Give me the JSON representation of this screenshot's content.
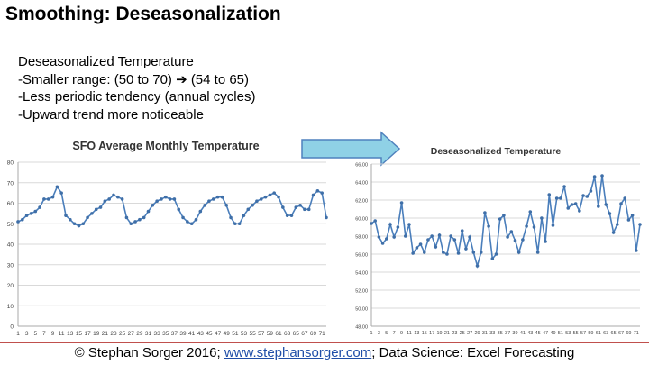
{
  "slide": {
    "title": "Smoothing: Deseasonalization",
    "notes": [
      "Deseasonalized Temperature",
      "-Smaller range: (50 to 70) ➔ (54 to 65)",
      "-Less periodic tendency (annual cycles)",
      "-Upward trend more noticeable"
    ],
    "footer_prefix": "© Stephan Sorger 2016; ",
    "footer_link": "www.stephansorger.com",
    "footer_suffix": "; Data Science: Excel Forecasting"
  },
  "colors": {
    "line": "#4a7ebb",
    "marker": "#3f6fa8",
    "grid": "#d9d9d9",
    "arrow_fill": "#8fd1e6",
    "arrow_stroke": "#4f81bd",
    "footer_rule": "#c0504d",
    "link": "#1f4ea8"
  },
  "icons": [
    "right-arrow-icon"
  ],
  "chart_data": [
    {
      "type": "line",
      "title": "SFO Average Monthly Temperature",
      "xlabel": "",
      "ylabel": "",
      "ylim": [
        0,
        80
      ],
      "yticks": [
        0,
        10,
        20,
        30,
        40,
        50,
        60,
        70,
        80
      ],
      "ytick_labels": [
        "0",
        "10",
        "20",
        "30",
        "40",
        "50",
        "60",
        "70",
        "80"
      ],
      "xticks": [
        1,
        3,
        5,
        7,
        9,
        11,
        13,
        15,
        17,
        19,
        21,
        23,
        25,
        27,
        29,
        31,
        33,
        35,
        37,
        39,
        41,
        43,
        45,
        47,
        49,
        51,
        53,
        55,
        57,
        59,
        61,
        63,
        65,
        67,
        69,
        71
      ],
      "grid": true,
      "legend": "none",
      "x": [
        1,
        2,
        3,
        4,
        5,
        6,
        7,
        8,
        9,
        10,
        11,
        12,
        13,
        14,
        15,
        16,
        17,
        18,
        19,
        20,
        21,
        22,
        23,
        24,
        25,
        26,
        27,
        28,
        29,
        30,
        31,
        32,
        33,
        34,
        35,
        36,
        37,
        38,
        39,
        40,
        41,
        42,
        43,
        44,
        45,
        46,
        47,
        48,
        49,
        50,
        51,
        52,
        53,
        54,
        55,
        56,
        57,
        58,
        59,
        60,
        61,
        62,
        63,
        64,
        65,
        66,
        67,
        68,
        69,
        70,
        71,
        72
      ],
      "values": [
        51,
        52,
        54,
        55,
        56,
        58,
        62,
        62,
        63,
        68,
        65,
        54,
        52,
        50,
        49,
        50,
        53,
        55,
        57,
        58,
        61,
        62,
        64,
        63,
        62,
        53,
        50,
        51,
        52,
        53,
        56,
        59,
        61,
        62,
        63,
        62,
        62,
        57,
        53,
        51,
        50,
        52,
        56,
        59,
        61,
        62,
        63,
        63,
        59,
        53,
        50,
        50,
        54,
        57,
        59,
        61,
        62,
        63,
        64,
        65,
        63,
        58,
        54,
        54,
        58,
        59,
        57,
        57,
        64,
        66,
        65,
        53
      ],
      "series": [
        {
          "name": "",
          "values": [
            51,
            52,
            54,
            55,
            56,
            58,
            62,
            62,
            63,
            68,
            65,
            54,
            52,
            50,
            49,
            50,
            53,
            55,
            57,
            58,
            61,
            62,
            64,
            63,
            62,
            53,
            50,
            51,
            52,
            53,
            56,
            59,
            61,
            62,
            63,
            62,
            62,
            57,
            53,
            51,
            50,
            52,
            56,
            59,
            61,
            62,
            63,
            63,
            59,
            53,
            50,
            50,
            54,
            57,
            59,
            61,
            62,
            63,
            64,
            65,
            63,
            58,
            54,
            54,
            58,
            59,
            57,
            57,
            64,
            66,
            65,
            53
          ]
        }
      ]
    },
    {
      "type": "line",
      "title": "Deseasonalized Temperature",
      "xlabel": "",
      "ylabel": "",
      "ylim": [
        48,
        66
      ],
      "yticks": [
        48,
        50,
        52,
        54,
        56,
        58,
        60,
        62,
        64,
        66
      ],
      "ytick_labels": [
        "48.00",
        "50.00",
        "52.00",
        "54.00",
        "56.00",
        "58.00",
        "60.00",
        "62.00",
        "64.00",
        "66.00"
      ],
      "xticks": [
        1,
        3,
        5,
        7,
        9,
        11,
        13,
        15,
        17,
        19,
        21,
        23,
        25,
        27,
        29,
        31,
        33,
        35,
        37,
        39,
        41,
        43,
        45,
        47,
        49,
        51,
        53,
        55,
        57,
        59,
        61,
        63,
        65,
        67,
        69,
        71
      ],
      "grid": true,
      "legend": "none",
      "x": [
        1,
        2,
        3,
        4,
        5,
        6,
        7,
        8,
        9,
        10,
        11,
        12,
        13,
        14,
        15,
        16,
        17,
        18,
        19,
        20,
        21,
        22,
        23,
        24,
        25,
        26,
        27,
        28,
        29,
        30,
        31,
        32,
        33,
        34,
        35,
        36,
        37,
        38,
        39,
        40,
        41,
        42,
        43,
        44,
        45,
        46,
        47,
        48,
        49,
        50,
        51,
        52,
        53,
        54,
        55,
        56,
        57,
        58,
        59,
        60,
        61,
        62,
        63,
        64,
        65,
        66,
        67,
        68,
        69,
        70,
        71,
        72
      ],
      "values": [
        59.4,
        59.7,
        57.9,
        57.2,
        57.7,
        59.3,
        57.9,
        59.0,
        61.7,
        58.0,
        59.3,
        56.1,
        56.7,
        57.1,
        56.2,
        57.6,
        58.0,
        56.8,
        58.1,
        56.2,
        56.0,
        58.0,
        57.6,
        56.1,
        58.6,
        56.6,
        57.9,
        56.2,
        54.7,
        56.2,
        60.6,
        59.1,
        55.5,
        56.0,
        59.9,
        60.3,
        57.9,
        58.5,
        57.5,
        56.2,
        57.6,
        59.1,
        60.7,
        59.0,
        56.2,
        60.0,
        57.4,
        62.6,
        59.2,
        62.2,
        62.2,
        63.5,
        61.1,
        61.5,
        61.6,
        60.8,
        62.5,
        62.4,
        63.0,
        64.6,
        61.3,
        64.7,
        61.5,
        60.5,
        58.4,
        59.3,
        61.6,
        62.2,
        59.8,
        60.3,
        56.4,
        59.3
      ],
      "series": [
        {
          "name": "",
          "values": [
            59.4,
            59.7,
            57.9,
            57.2,
            57.7,
            59.3,
            57.9,
            59.0,
            61.7,
            58.0,
            59.3,
            56.1,
            56.7,
            57.1,
            56.2,
            57.6,
            58.0,
            56.8,
            58.1,
            56.2,
            56.0,
            58.0,
            57.6,
            56.1,
            58.6,
            56.6,
            57.9,
            56.2,
            54.7,
            56.2,
            60.6,
            59.1,
            55.5,
            56.0,
            59.9,
            60.3,
            57.9,
            58.5,
            57.5,
            56.2,
            57.6,
            59.1,
            60.7,
            59.0,
            56.2,
            60.0,
            57.4,
            62.6,
            59.2,
            62.2,
            62.2,
            63.5,
            61.1,
            61.5,
            61.6,
            60.8,
            62.5,
            62.4,
            63.0,
            64.6,
            61.3,
            64.7,
            61.5,
            60.5,
            58.4,
            59.3,
            61.6,
            62.2,
            59.8,
            60.3,
            56.4,
            59.3
          ]
        }
      ]
    }
  ]
}
